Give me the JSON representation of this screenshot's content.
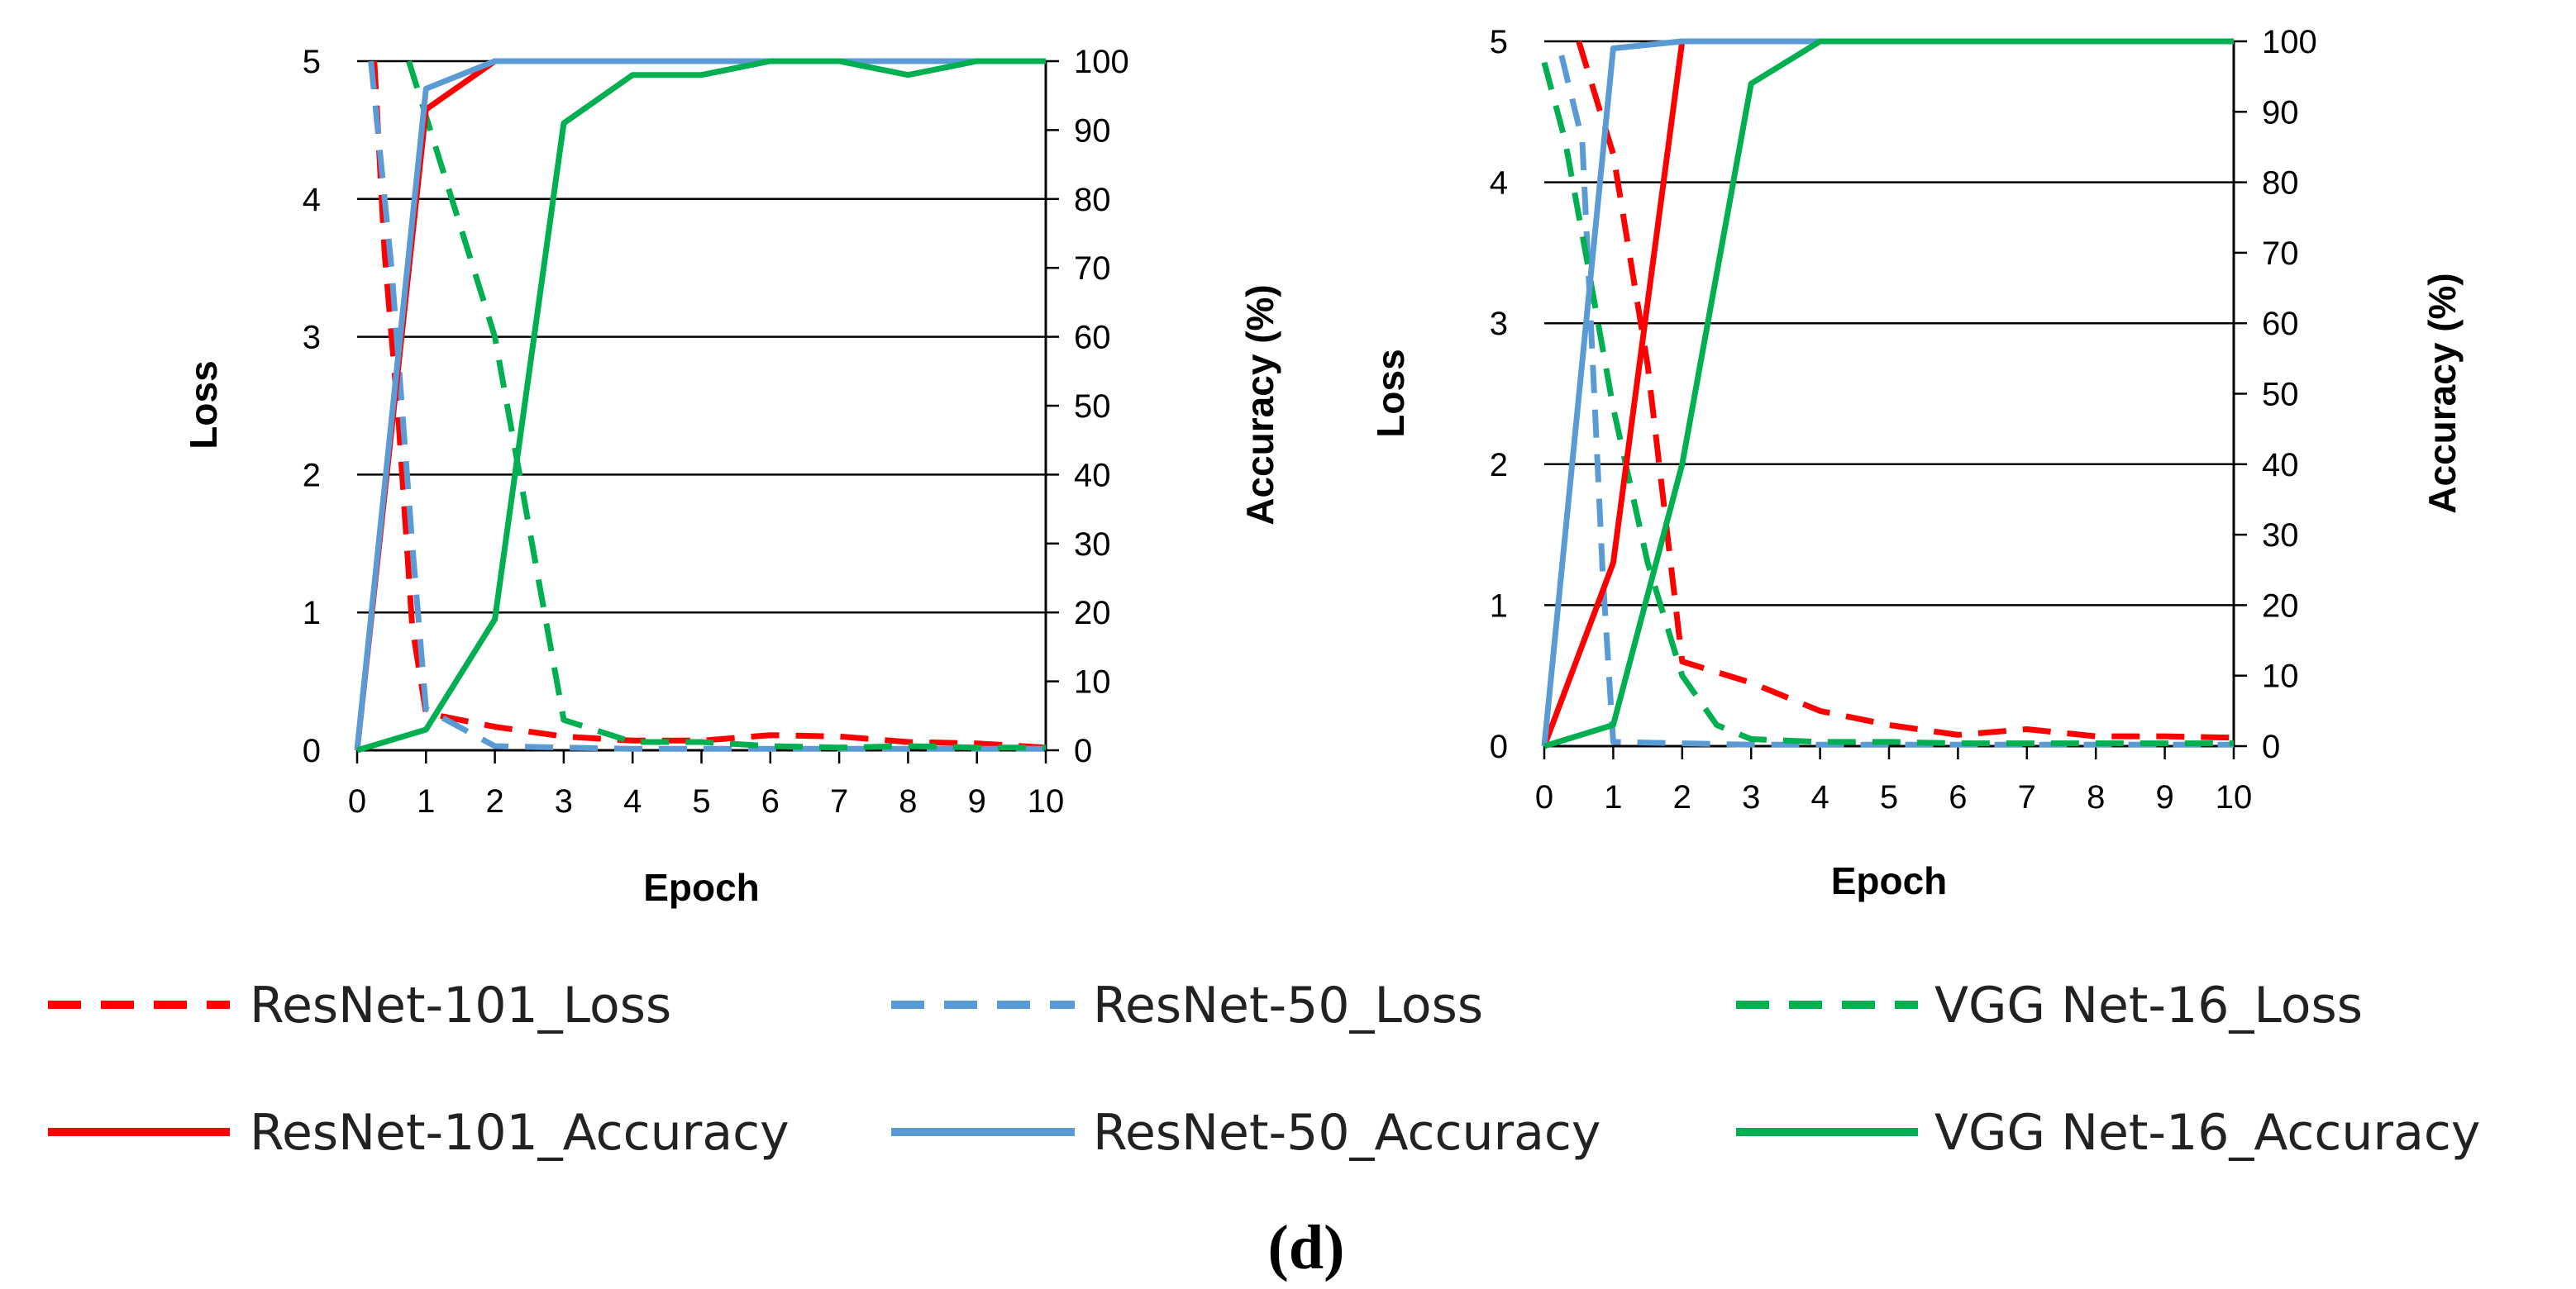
{
  "caption": "(d)",
  "legend": [
    {
      "label": "ResNet-101_Loss",
      "color": "#ff0000",
      "dash": true
    },
    {
      "label": "ResNet-50_Loss",
      "color": "#5b9bd5",
      "dash": true
    },
    {
      "label": "VGG Net-16_Loss",
      "color": "#00b050",
      "dash": true
    },
    {
      "label": "ResNet-101_Accuracy",
      "color": "#ff0000",
      "dash": false
    },
    {
      "label": "ResNet-50_Accuracy",
      "color": "#5b9bd5",
      "dash": false
    },
    {
      "label": "VGG Net-16_Accuracy",
      "color": "#00b050",
      "dash": false
    }
  ],
  "chart_data": [
    {
      "type": "line",
      "title": "",
      "xlabel": "Epoch",
      "ylabel": "Loss",
      "y2label": "Accuracy (%)",
      "x": [
        0,
        1,
        2,
        3,
        4,
        5,
        6,
        7,
        8,
        9,
        10
      ],
      "xlim": [
        0,
        10
      ],
      "ylim": [
        0,
        5
      ],
      "y2lim": [
        0,
        100
      ],
      "yticks": [
        0,
        1,
        2,
        3,
        4,
        5
      ],
      "y2ticks": [
        0,
        10,
        20,
        30,
        40,
        50,
        60,
        70,
        80,
        90,
        100
      ],
      "grid": true,
      "series": [
        {
          "name": "ResNet-101_Loss",
          "axis": "left",
          "style": "dashed",
          "color": "#ff0000",
          "x": [
            0.25,
            0.4,
            0.6,
            0.8,
            1,
            2,
            3,
            4,
            5,
            6,
            7,
            8,
            9,
            10
          ],
          "values": [
            5.0,
            3.6,
            2.4,
            0.9,
            0.27,
            0.17,
            0.1,
            0.07,
            0.07,
            0.11,
            0.1,
            0.06,
            0.05,
            0.02
          ]
        },
        {
          "name": "ResNet-50_Loss",
          "axis": "left",
          "style": "dashed",
          "color": "#5b9bd5",
          "x": [
            0.2,
            0.5,
            0.8,
            1,
            2,
            3,
            4,
            5,
            6,
            7,
            8,
            9,
            10
          ],
          "values": [
            5.0,
            3.5,
            1.5,
            0.3,
            0.03,
            0.02,
            0.01,
            0.01,
            0.01,
            0.01,
            0.01,
            0.01,
            0.01
          ]
        },
        {
          "name": "VGG Net-16_Loss",
          "axis": "left",
          "style": "dashed",
          "color": "#00b050",
          "x": [
            0.75,
            1,
            2,
            3,
            4,
            5,
            6,
            7,
            8,
            9,
            10
          ],
          "values": [
            5.0,
            4.6,
            3.0,
            0.22,
            0.06,
            0.06,
            0.03,
            0.02,
            0.03,
            0.02,
            0.02
          ]
        },
        {
          "name": "ResNet-101_Accuracy",
          "axis": "right",
          "style": "solid",
          "color": "#ff0000",
          "x": [
            0,
            1,
            2,
            3,
            4,
            5,
            6,
            7,
            8,
            9,
            10
          ],
          "values": [
            0,
            93,
            100,
            100,
            100,
            100,
            100,
            100,
            100,
            100,
            100
          ]
        },
        {
          "name": "ResNet-50_Accuracy",
          "axis": "right",
          "style": "solid",
          "color": "#5b9bd5",
          "x": [
            0,
            1,
            2,
            3,
            4,
            5,
            6,
            7,
            8,
            9,
            10
          ],
          "values": [
            0,
            96,
            100,
            100,
            100,
            100,
            100,
            100,
            100,
            100,
            100
          ]
        },
        {
          "name": "VGG Net-16_Accuracy",
          "axis": "right",
          "style": "solid",
          "color": "#00b050",
          "x": [
            0,
            1,
            2,
            3,
            4,
            5,
            6,
            7,
            8,
            9,
            10
          ],
          "values": [
            0,
            3,
            19,
            91,
            98,
            98,
            100,
            100,
            98,
            100,
            100
          ]
        }
      ]
    },
    {
      "type": "line",
      "title": "",
      "xlabel": "Epoch",
      "ylabel": "Loss",
      "y2label": "Accuracy (%)",
      "x": [
        0,
        1,
        2,
        3,
        4,
        5,
        6,
        7,
        8,
        9,
        10
      ],
      "xlim": [
        0,
        10
      ],
      "ylim": [
        0,
        5
      ],
      "y2lim": [
        0,
        100
      ],
      "yticks": [
        0,
        1,
        2,
        3,
        4,
        5
      ],
      "y2ticks": [
        0,
        10,
        20,
        30,
        40,
        50,
        60,
        70,
        80,
        90,
        100
      ],
      "grid": true,
      "series": [
        {
          "name": "ResNet-101_Loss",
          "axis": "left",
          "style": "dashed",
          "color": "#ff0000",
          "x": [
            0.5,
            0.75,
            1,
            1.5,
            2,
            3,
            4,
            5,
            6,
            7,
            8,
            9,
            10
          ],
          "values": [
            5.0,
            4.6,
            4.2,
            2.7,
            0.6,
            0.45,
            0.25,
            0.15,
            0.08,
            0.12,
            0.07,
            0.07,
            0.06
          ]
        },
        {
          "name": "ResNet-50_Loss",
          "axis": "left",
          "style": "dashed",
          "color": "#5b9bd5",
          "x": [
            0.25,
            0.55,
            0.85,
            1,
            2,
            3,
            4,
            5,
            6,
            7,
            8,
            9,
            10
          ],
          "values": [
            4.9,
            4.3,
            1.2,
            0.03,
            0.02,
            0.01,
            0.01,
            0.01,
            0.01,
            0.01,
            0.01,
            0.01,
            0.01
          ]
        },
        {
          "name": "VGG Net-16_Loss",
          "axis": "left",
          "style": "dashed",
          "color": "#00b050",
          "x": [
            0,
            0.3,
            0.6,
            1,
            1.5,
            2,
            2.5,
            3,
            4,
            5,
            6,
            7,
            8,
            9,
            10
          ],
          "values": [
            4.85,
            4.3,
            3.5,
            2.4,
            1.3,
            0.5,
            0.15,
            0.05,
            0.03,
            0.03,
            0.02,
            0.02,
            0.02,
            0.02,
            0.02
          ]
        },
        {
          "name": "ResNet-101_Accuracy",
          "axis": "right",
          "style": "solid",
          "color": "#ff0000",
          "x": [
            0,
            1,
            2,
            3,
            4,
            5,
            6,
            7,
            8,
            9,
            10
          ],
          "values": [
            0,
            26,
            100,
            100,
            100,
            100,
            100,
            100,
            100,
            100,
            100
          ]
        },
        {
          "name": "ResNet-50_Accuracy",
          "axis": "right",
          "style": "solid",
          "color": "#5b9bd5",
          "x": [
            0,
            1,
            2,
            3,
            4,
            5,
            6,
            7,
            8,
            9,
            10
          ],
          "values": [
            0,
            99,
            100,
            100,
            100,
            100,
            100,
            100,
            100,
            100,
            100
          ]
        },
        {
          "name": "VGG Net-16_Accuracy",
          "axis": "right",
          "style": "solid",
          "color": "#00b050",
          "x": [
            0,
            1,
            2,
            3,
            4,
            5,
            6,
            7,
            8,
            9,
            10
          ],
          "values": [
            0,
            3,
            40,
            94,
            100,
            100,
            100,
            100,
            100,
            100,
            100
          ]
        }
      ]
    }
  ]
}
